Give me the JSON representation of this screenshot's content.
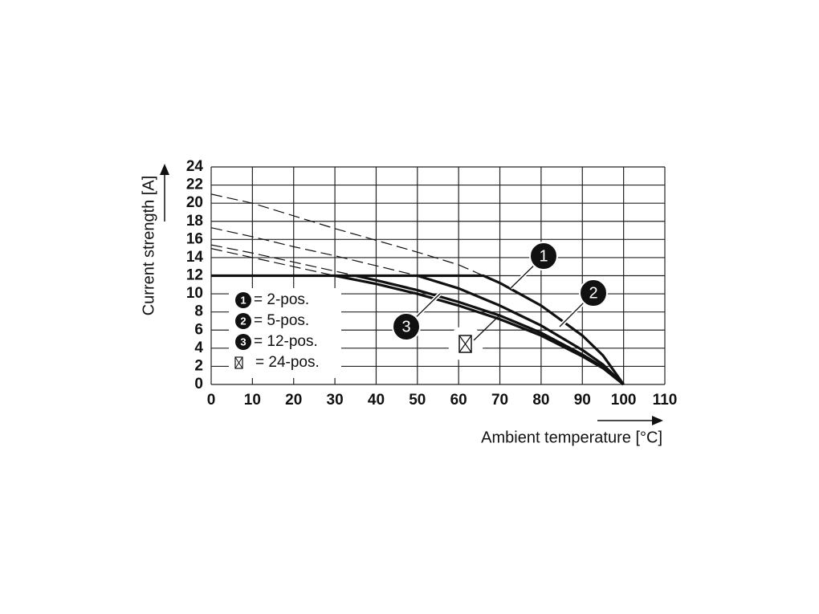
{
  "chart_data": {
    "type": "line",
    "x_label": "Ambient temperature [°C]",
    "y_label": "Current strength [A]",
    "xlim": [
      0,
      110
    ],
    "xticks": [
      0,
      10,
      20,
      30,
      40,
      50,
      60,
      70,
      80,
      90,
      100,
      110
    ],
    "ylim": [
      0,
      24
    ],
    "yticks": [
      0,
      2,
      4,
      6,
      8,
      10,
      12,
      14,
      16,
      18,
      20,
      22,
      24
    ],
    "grid": true,
    "series": [
      {
        "color": "#111111",
        "dash": true,
        "x": [
          0,
          10,
          20,
          30,
          40,
          50,
          60,
          66
        ],
        "values": [
          21,
          20,
          18.6,
          17.2,
          15.9,
          14.6,
          13.2,
          12
        ]
      },
      {
        "color": "#111111",
        "dash": true,
        "x": [
          0,
          10,
          20,
          30,
          40,
          50
        ],
        "values": [
          17.3,
          16.3,
          15.2,
          14.2,
          13.1,
          12
        ]
      },
      {
        "color": "#111111",
        "dash": true,
        "x": [
          0,
          10,
          20,
          30,
          35
        ],
        "values": [
          15.4,
          14.5,
          13.5,
          12.5,
          12
        ]
      },
      {
        "color": "#111111",
        "dash": true,
        "x": [
          0,
          10,
          20,
          30
        ],
        "values": [
          15,
          14,
          13,
          12
        ]
      },
      {
        "color": "#111111",
        "dash": false,
        "x": [
          0,
          66,
          70,
          80,
          90,
          95,
          100
        ],
        "values": [
          12,
          12,
          11.2,
          8.7,
          5.4,
          3.2,
          0
        ]
      },
      {
        "color": "#111111",
        "dash": false,
        "x": [
          50,
          60,
          70,
          80,
          90,
          95,
          100
        ],
        "values": [
          12,
          10.6,
          8.7,
          6.5,
          3.8,
          2.2,
          0
        ]
      },
      {
        "color": "#111111",
        "dash": false,
        "x": [
          35,
          40,
          50,
          60,
          70,
          80,
          90,
          95,
          100
        ],
        "values": [
          12,
          11.5,
          10.4,
          9.1,
          7.6,
          5.7,
          3.3,
          1.9,
          0
        ]
      },
      {
        "color": "#111111",
        "dash": false,
        "x": [
          30,
          40,
          50,
          60,
          70,
          80,
          90,
          95,
          100
        ],
        "values": [
          12,
          11.1,
          10,
          8.7,
          7.2,
          5.4,
          3.1,
          1.8,
          0
        ]
      }
    ],
    "legend": [
      {
        "marker": "1",
        "label": "= 2-pos."
      },
      {
        "marker": "2",
        "label": "= 5-pos."
      },
      {
        "marker": "3",
        "label": "= 12-pos."
      },
      {
        "label": "= 24-pos."
      }
    ],
    "callouts": [
      "1",
      "2",
      "3"
    ]
  }
}
